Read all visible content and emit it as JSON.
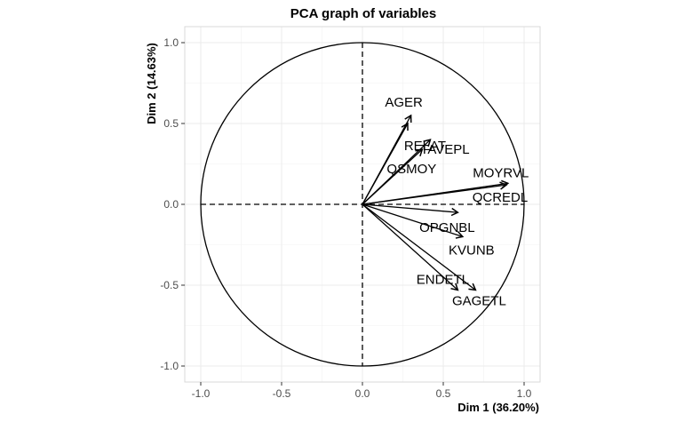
{
  "chart_data": {
    "type": "scatter",
    "subtype": "pca-correlation-circle",
    "title": "PCA graph of variables",
    "xlabel": "Dim 1 (36.20%)",
    "ylabel": "Dim 2 (14.63%)",
    "xlim": [
      -1.1,
      1.1
    ],
    "ylim": [
      -1.1,
      1.1
    ],
    "x_ticks": [
      "-1.0",
      "-0.5",
      "0.0",
      "0.5",
      "1.0"
    ],
    "y_ticks": [
      "-1.0",
      "-0.5",
      "0.0",
      "0.5",
      "1.0"
    ],
    "grid": true,
    "unit_circle": true,
    "variables": [
      {
        "label": "AGER",
        "x": 0.3,
        "y": 0.55
      },
      {
        "label": "RELAT",
        "x": 0.42,
        "y": 0.4
      },
      {
        "label": "TAVEPL",
        "x": 0.28,
        "y": 0.5
      },
      {
        "label": "QSMOY",
        "x": 0.37,
        "y": 0.34
      },
      {
        "label": "MOYRVL",
        "x": 0.9,
        "y": 0.13
      },
      {
        "label": "QCREDL",
        "x": 0.89,
        "y": 0.12
      },
      {
        "label": "OPGNBL",
        "x": 0.59,
        "y": -0.05
      },
      {
        "label": "KVUNB",
        "x": 0.62,
        "y": -0.2
      },
      {
        "label": "ENDETL",
        "x": 0.59,
        "y": -0.53
      },
      {
        "label": "GAGETL",
        "x": 0.7,
        "y": -0.53
      }
    ],
    "colors": {
      "arrow": "#000000",
      "grid": "#ebebeb",
      "panel_border": "#d9d9d9",
      "circle": "#000000"
    }
  }
}
